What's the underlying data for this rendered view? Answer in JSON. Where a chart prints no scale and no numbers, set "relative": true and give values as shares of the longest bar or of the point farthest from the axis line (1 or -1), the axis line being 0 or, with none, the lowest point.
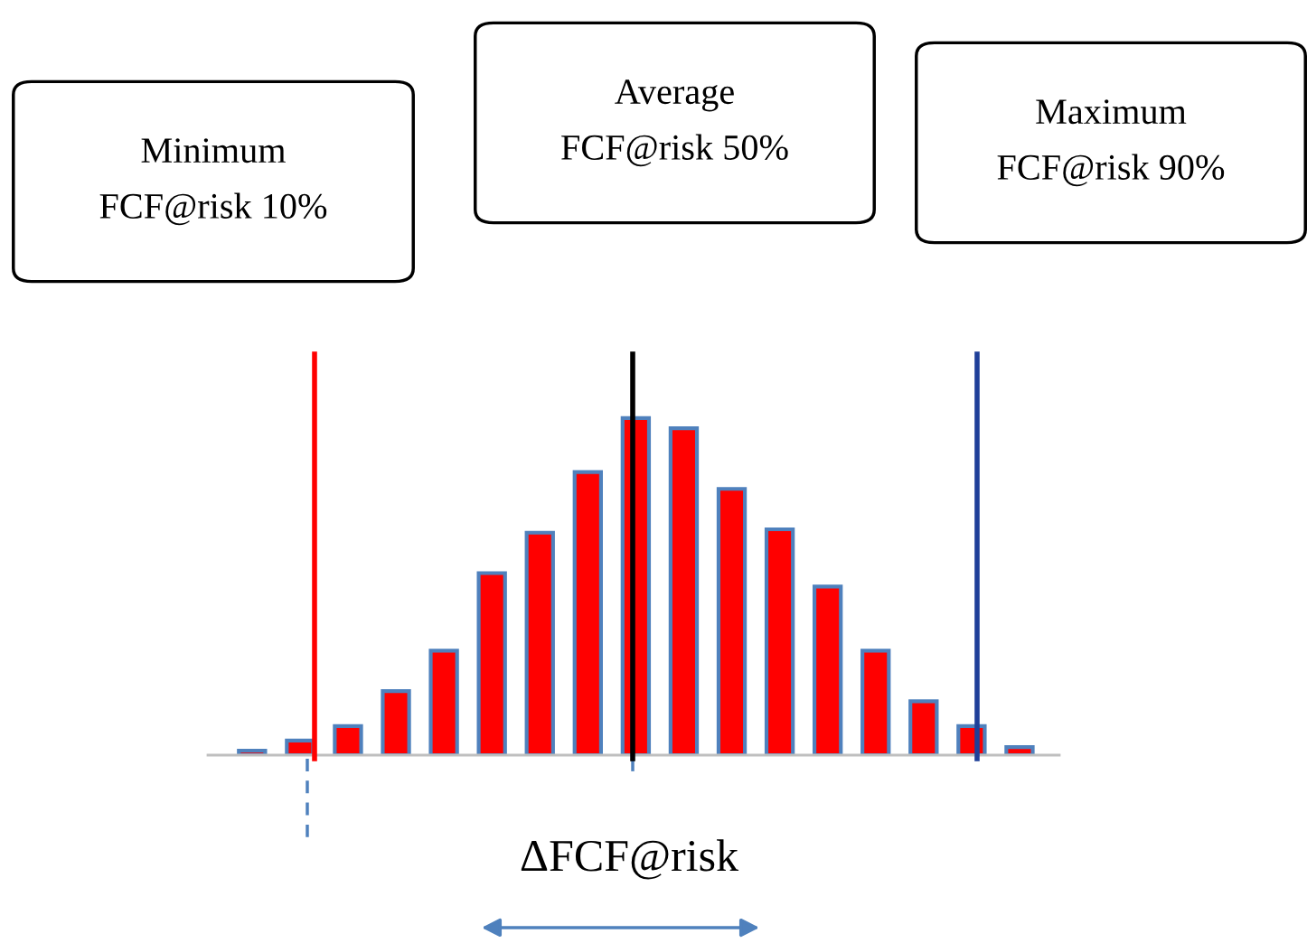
{
  "chart_data": {
    "type": "bar",
    "relative": true,
    "categories": [
      null,
      null,
      null,
      null,
      null,
      null,
      null,
      null,
      null,
      null,
      null,
      null,
      null,
      null,
      null,
      null,
      null
    ],
    "series": [
      {
        "color": "#ff0000",
        "values": [
          0.013,
          0.043,
          0.086,
          0.19,
          0.31,
          0.54,
          0.66,
          0.84,
          1,
          0.97,
          0.79,
          0.67,
          0.5,
          0.31,
          0.16,
          0.086,
          0.024
        ]
      }
    ],
    "annotations": [
      "Minimum\nFCF@risk 10%",
      "Average\nFCF@risk 50%",
      "Maximum\nFCF@risk 90%",
      "ΔFCF@risk"
    ],
    "legend": false
  }
}
